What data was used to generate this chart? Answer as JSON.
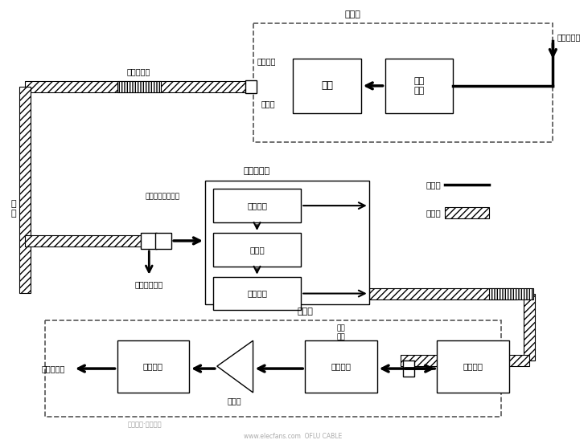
{
  "bg_color": "#ffffff",
  "fig_width": 7.31,
  "fig_height": 5.53,
  "dpi": 100,
  "tx_label": "发射端",
  "rep_label": "再生中继器",
  "rx_label": "接收端",
  "box_guang_yuan": "光源",
  "box_dian_diao": "电调\n制器",
  "box_lian_jie": "连接器",
  "box_guang_tiao_tx": "光调制器",
  "box_guang_jian_rep": "光检测器",
  "box_dian_chu_rep": "电处理",
  "box_guang_tiao_rep": "光调制器",
  "box_guang_fang": "光放大器",
  "box_guang_jian_rx": "光检测器",
  "box_xin_hao": "信号处理",
  "box_guang_dian": "光电\n转换",
  "box_fang_da": "放大器",
  "label_dian_ru": "电信号输入",
  "label_dian_chu": "电信号输出",
  "label_guang_huo": "光纤活动盒",
  "label_guang_he": "光纤合波器分束器",
  "label_jian_kong": "监控辅助设备",
  "label_guang_xian": "光\n纤",
  "label_elec_sig": "电信号",
  "label_opt_sig": "光信号",
  "watermark1": "宽带通讯·数字程控",
  "watermark2": "www.elecfans.com  OFLU CABLE"
}
